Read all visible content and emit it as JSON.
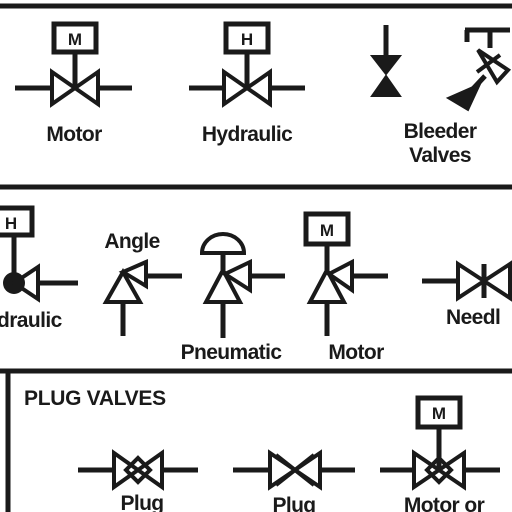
{
  "sections": {
    "top": {
      "symbols": {
        "motor": {
          "label": "Motor",
          "actuator_mark": "M"
        },
        "hydraulic": {
          "label": "Hydraulic",
          "actuator_mark": "H"
        },
        "bleeder": {
          "label_line1": "Bleeder",
          "label_line2": "Valves"
        }
      }
    },
    "middle": {
      "symbols": {
        "hydraulic_partial": {
          "label": "draulic",
          "actuator_mark": "H"
        },
        "angle": {
          "label": "Angle"
        },
        "pneumatic": {
          "label": "Pneumatic"
        },
        "motor": {
          "label": "Motor",
          "actuator_mark": "M"
        },
        "needle_partial": {
          "label": "Needl"
        }
      }
    },
    "bottom": {
      "header": "PLUG VALVES",
      "symbols": {
        "plug_1": {
          "label": "Plug"
        },
        "plug_2": {
          "label": "Plug"
        },
        "motor_operated": {
          "label": "Motor or",
          "actuator_mark": "M"
        }
      }
    }
  },
  "colors": {
    "ink": "#1a1a1a",
    "background": "#ffffff"
  }
}
